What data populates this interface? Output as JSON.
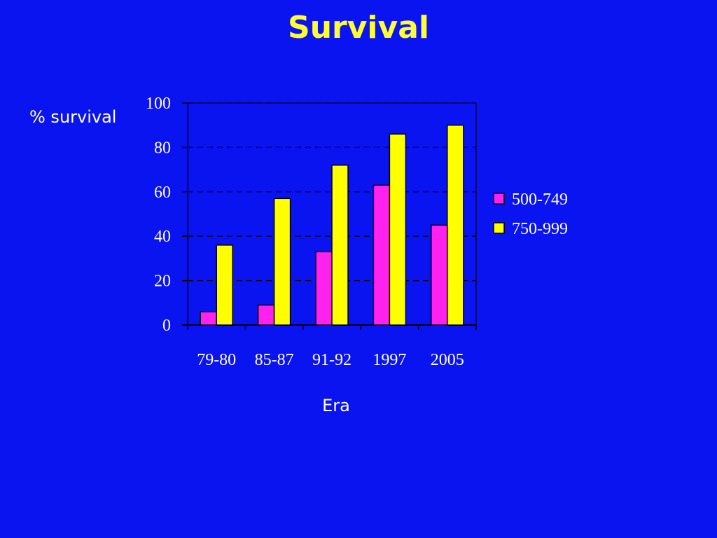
{
  "colors": {
    "background": "#0a14f0",
    "title": "#ffff33",
    "text": "#ffffff"
  },
  "chart_data": {
    "type": "bar",
    "title": "Survival",
    "ylabel": "% survival",
    "xlabel": "Era",
    "categories": [
      "79-80",
      "85-87",
      "91-92",
      "1997",
      "2005"
    ],
    "series": [
      {
        "name": "500-749",
        "color": "#ff22ee",
        "values": [
          6,
          9,
          33,
          63,
          45
        ]
      },
      {
        "name": "750-999",
        "color": "#ffff00",
        "values": [
          36,
          57,
          72,
          86,
          90
        ]
      }
    ],
    "ylim": [
      0,
      100
    ],
    "yticks": [
      0,
      20,
      40,
      60,
      80,
      100
    ],
    "grid": "dashed horizontal",
    "legend_position": "right"
  }
}
